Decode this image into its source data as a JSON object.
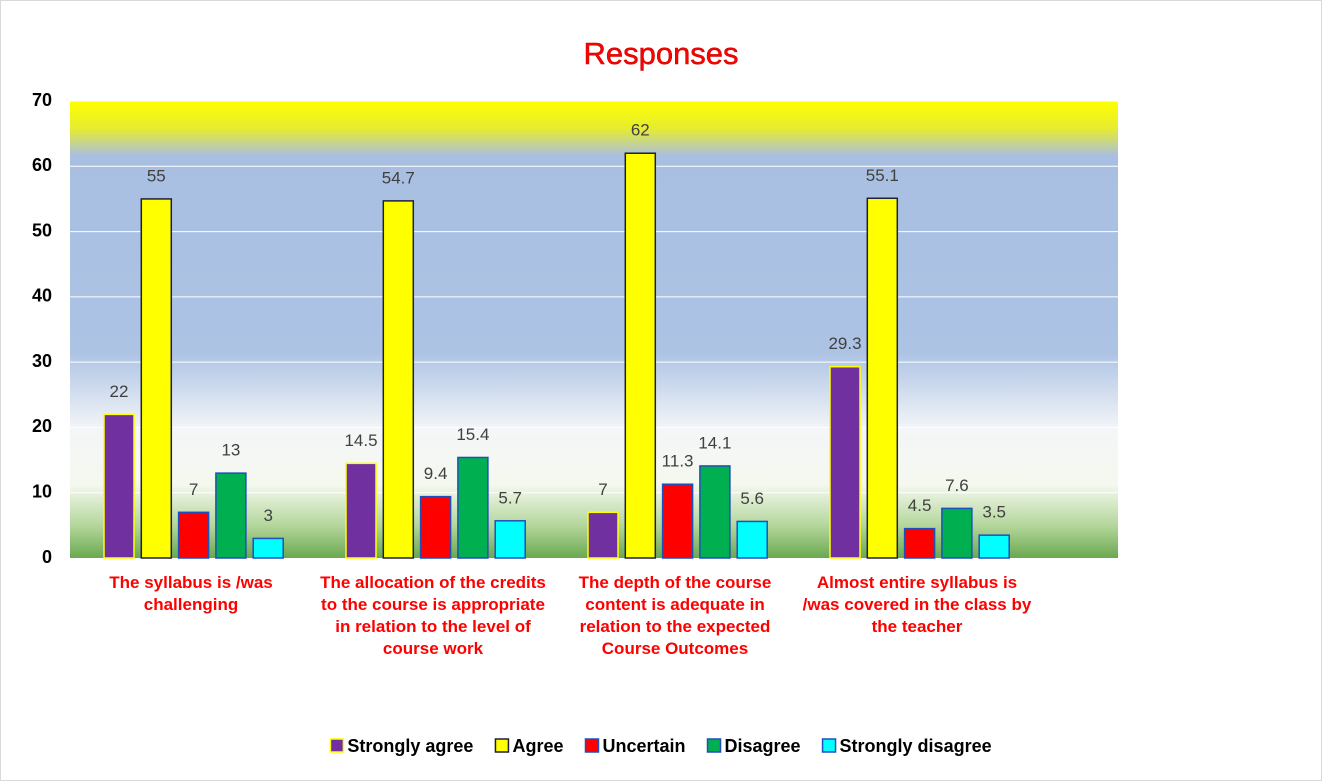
{
  "chart_data": {
    "type": "bar",
    "title": "Responses",
    "categories": [
      "The syllabus is /was challenging",
      "The allocation of the credits to the course is appropriate in relation to the level of course work",
      "The depth of the course content is adequate in relation to the expected Course Outcomes",
      "Almost entire syllabus is /was covered in the class by the teacher"
    ],
    "series": [
      {
        "name": "Strongly agree",
        "color": "#7030a0",
        "values": [
          22,
          14.5,
          7,
          29.3
        ]
      },
      {
        "name": "Agree",
        "color": "#ffff00",
        "values": [
          55,
          54.7,
          62,
          55.1
        ]
      },
      {
        "name": "Uncertain",
        "color": "#ff0000",
        "values": [
          7,
          9.4,
          11.3,
          4.5
        ]
      },
      {
        "name": "Disagree",
        "color": "#00b050",
        "values": [
          13,
          15.4,
          14.1,
          7.6
        ]
      },
      {
        "name": "Strongly disagree",
        "color": "#00ffff",
        "values": [
          3,
          5.7,
          5.6,
          3.5
        ]
      }
    ],
    "ylim": [
      0,
      70
    ],
    "yticks": [
      0,
      10,
      20,
      30,
      40,
      50,
      60,
      70
    ],
    "grid": true,
    "legend": "bottom"
  }
}
